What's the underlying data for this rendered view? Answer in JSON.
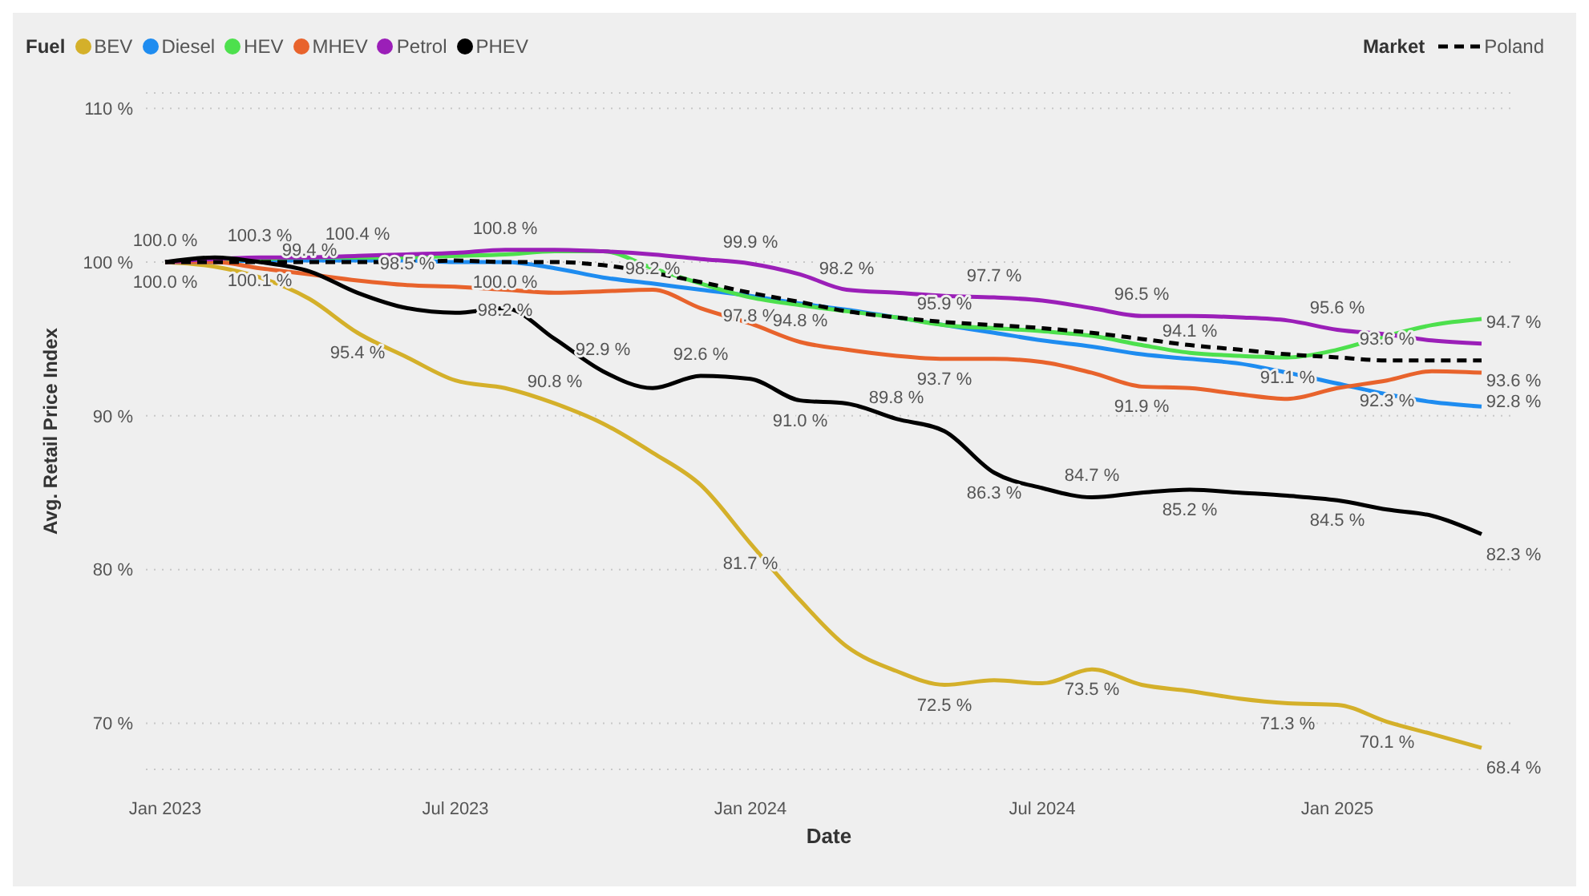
{
  "chart_data": {
    "type": "line",
    "xlabel": "Date",
    "ylabel": "Avg. Retail Price Index",
    "legend_title": "Fuel",
    "legend": "top",
    "grid": "y",
    "marker": "none",
    "annotations": [
      "Market"
    ],
    "x": [
      "2023-01",
      "2023-02",
      "2023-03",
      "2023-04",
      "2023-05",
      "2023-06",
      "2023-07",
      "2023-08",
      "2023-09",
      "2023-10",
      "2023-11",
      "2023-12",
      "2024-01",
      "2024-02",
      "2024-03",
      "2024-04",
      "2024-05",
      "2024-06",
      "2024-07",
      "2024-08",
      "2024-09",
      "2024-10",
      "2024-11",
      "2024-12",
      "2025-01",
      "2025-02",
      "2025-03",
      "2025-04"
    ],
    "xlim": [
      "2022-12-20",
      "2025-04-20"
    ],
    "xticks": [
      {
        "value": "2023-01",
        "label": "Jan 2023"
      },
      {
        "value": "2023-07",
        "label": "Jul 2023"
      },
      {
        "value": "2024-01",
        "label": "Jan 2024"
      },
      {
        "value": "2024-07",
        "label": "Jul 2024"
      },
      {
        "value": "2025-01",
        "label": "Jan 2025"
      }
    ],
    "ylim": [
      67,
      111
    ],
    "yticks": [
      {
        "value": 70,
        "label": "70 %"
      },
      {
        "value": 80,
        "label": "80 %"
      },
      {
        "value": 90,
        "label": "90 %"
      },
      {
        "value": 100,
        "label": "100 %"
      },
      {
        "value": 110,
        "label": "110 %"
      }
    ],
    "series": [
      {
        "name": "BEV",
        "color": "#d4b02a",
        "values": [
          100,
          99.7,
          99.0,
          97.6,
          95.4,
          93.8,
          92.3,
          91.8,
          90.8,
          89.5,
          87.6,
          85.5,
          81.7,
          78.0,
          75.0,
          73.4,
          72.5,
          72.8,
          72.6,
          73.5,
          72.5,
          72.1,
          71.6,
          71.3,
          71.2,
          70.1,
          69.3,
          68.4
        ],
        "value_labels": [
          "100.0 %",
          null,
          null,
          null,
          "95.4 %",
          null,
          null,
          null,
          "90.8 %",
          null,
          null,
          null,
          "81.7 %",
          null,
          null,
          null,
          "72.5 %",
          null,
          null,
          "73.5 %",
          null,
          null,
          null,
          "71.3 %",
          null,
          "70.1 %",
          null,
          "68.4 %"
        ]
      },
      {
        "name": "Diesel",
        "color": "#1e8cf0",
        "values": [
          100,
          100.0,
          100.1,
          100.1,
          100.1,
          100.1,
          100.0,
          100.0,
          99.6,
          99.0,
          98.6,
          98.2,
          97.8,
          97.3,
          96.9,
          96.4,
          95.9,
          95.4,
          94.9,
          94.5,
          94.0,
          93.7,
          93.4,
          92.8,
          92.1,
          91.4,
          90.9,
          90.6
        ],
        "value_labels": [
          null,
          null,
          "100.1 %",
          null,
          null,
          null,
          null,
          "100.0 %",
          null,
          null,
          null,
          null,
          "97.8 %",
          null,
          null,
          null,
          "95.9 %",
          null,
          null,
          null,
          null,
          null,
          null,
          null,
          null,
          null,
          null,
          null
        ]
      },
      {
        "name": "HEV",
        "color": "#4de04d",
        "values": [
          100,
          100.1,
          100.2,
          100.3,
          100.3,
          100.3,
          100.4,
          100.5,
          100.7,
          100.7,
          99.6,
          98.6,
          97.7,
          97.2,
          96.8,
          96.4,
          95.9,
          95.7,
          95.5,
          95.2,
          94.6,
          94.1,
          93.9,
          93.8,
          94.3,
          95.2,
          95.9,
          96.3
        ],
        "value_labels": [
          null,
          null,
          null,
          null,
          null,
          null,
          null,
          null,
          null,
          null,
          null,
          null,
          null,
          null,
          null,
          null,
          null,
          null,
          null,
          null,
          null,
          "94.1 %",
          null,
          null,
          null,
          null,
          null,
          null
        ]
      },
      {
        "name": "MHEV",
        "color": "#e8632c",
        "values": [
          100,
          100.0,
          99.6,
          99.2,
          98.8,
          98.5,
          98.4,
          98.2,
          98.0,
          98.1,
          98.2,
          97.0,
          96.0,
          94.8,
          94.3,
          93.9,
          93.7,
          93.7,
          93.5,
          92.8,
          91.9,
          91.8,
          91.4,
          91.1,
          91.8,
          92.3,
          92.9,
          92.8
        ],
        "value_labels": [
          null,
          null,
          null,
          null,
          null,
          "98.5 %",
          null,
          "98.2 %",
          null,
          null,
          "98.2 %",
          null,
          null,
          "94.8 %",
          null,
          null,
          "93.7 %",
          null,
          null,
          null,
          "91.9 %",
          null,
          null,
          "91.1 %",
          null,
          "92.3 %",
          null,
          "92.8 %"
        ]
      },
      {
        "name": "Petrol",
        "color": "#9b1fb8",
        "values": [
          100,
          100.2,
          100.3,
          100.3,
          100.4,
          100.5,
          100.6,
          100.8,
          100.8,
          100.7,
          100.5,
          100.2,
          99.9,
          99.2,
          98.2,
          98.0,
          97.8,
          97.7,
          97.5,
          97.0,
          96.5,
          96.5,
          96.4,
          96.2,
          95.6,
          95.3,
          94.9,
          94.7
        ],
        "value_labels": [
          null,
          null,
          "100.3 %",
          null,
          "100.4 %",
          null,
          null,
          "100.8 %",
          null,
          null,
          null,
          null,
          "99.9 %",
          null,
          "98.2 %",
          null,
          null,
          "97.7 %",
          null,
          null,
          "96.5 %",
          null,
          null,
          null,
          "95.6 %",
          null,
          null,
          "94.7 %"
        ]
      },
      {
        "name": "PHEV",
        "color": "#000000",
        "values": [
          100,
          100.3,
          100.0,
          99.4,
          98.0,
          97.0,
          96.7,
          97.0,
          95.0,
          92.9,
          91.8,
          92.6,
          92.4,
          91.0,
          90.8,
          89.8,
          89.0,
          86.3,
          85.3,
          84.7,
          85.0,
          85.2,
          85.0,
          84.8,
          84.5,
          83.9,
          83.5,
          82.3
        ],
        "value_labels": [
          "100.0 %",
          null,
          null,
          "99.4 %",
          null,
          null,
          null,
          null,
          null,
          "92.9 %",
          null,
          "92.6 %",
          null,
          "91.0 %",
          null,
          "89.8 %",
          null,
          "86.3 %",
          null,
          "84.7 %",
          null,
          "85.2 %",
          null,
          null,
          "84.5 %",
          null,
          null,
          "82.3 %"
        ]
      },
      {
        "name": "Poland",
        "color": "#000000",
        "line_style": "dashed",
        "values": [
          100,
          100.0,
          100.0,
          100.0,
          100.0,
          100.0,
          100.1,
          100.0,
          100.0,
          99.8,
          99.3,
          98.7,
          98.0,
          97.4,
          96.8,
          96.4,
          96.1,
          95.9,
          95.7,
          95.4,
          95.0,
          94.6,
          94.3,
          94.0,
          93.8,
          93.6,
          93.6,
          93.6
        ],
        "value_labels": [
          null,
          null,
          null,
          null,
          null,
          null,
          null,
          null,
          null,
          null,
          null,
          null,
          null,
          null,
          null,
          null,
          null,
          null,
          null,
          null,
          null,
          null,
          null,
          null,
          null,
          "93.6 %",
          null,
          "93.6 %"
        ]
      }
    ]
  }
}
